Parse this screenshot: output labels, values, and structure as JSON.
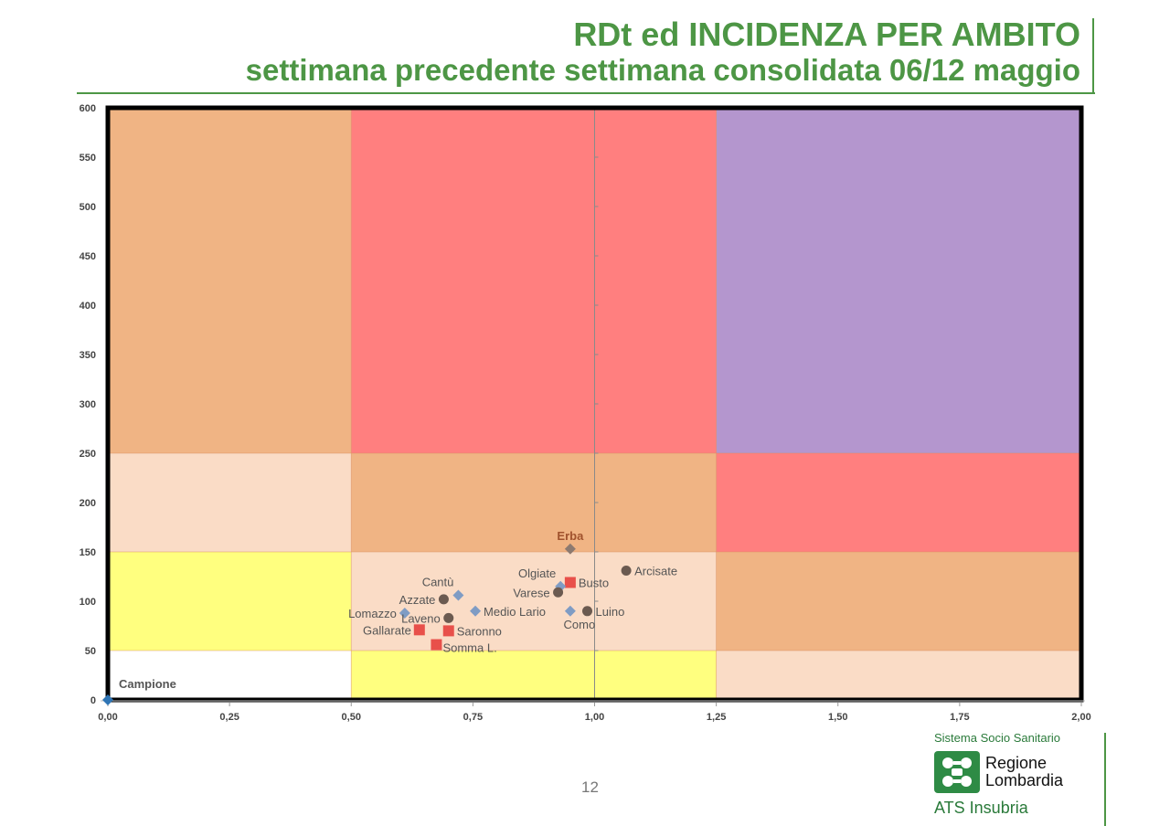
{
  "header": {
    "title_line1": "RDt ed INCIDENZA PER AMBITO",
    "title_line2": "settimana precedente settimana consolidata 06/12 maggio"
  },
  "chart_data": {
    "type": "scatter",
    "xlim": [
      0,
      2
    ],
    "ylim": [
      0,
      600
    ],
    "x_ticks": [
      "0,00",
      "0,25",
      "0,50",
      "0,75",
      "1,00",
      "1,25",
      "1,50",
      "1,75",
      "2,00"
    ],
    "y_ticks": [
      "0",
      "50",
      "100",
      "150",
      "200",
      "250",
      "300",
      "350",
      "400",
      "450",
      "500",
      "550",
      "600"
    ],
    "background_zones": [
      {
        "x": [
          0,
          0.5
        ],
        "y": [
          250,
          600
        ],
        "color": "#f0b484"
      },
      {
        "x": [
          0.5,
          1.25
        ],
        "y": [
          250,
          600
        ],
        "color": "#ff7f7f"
      },
      {
        "x": [
          1.25,
          2
        ],
        "y": [
          250,
          600
        ],
        "color": "#b496ce"
      },
      {
        "x": [
          0,
          0.5
        ],
        "y": [
          150,
          250
        ],
        "color": "#fadcc6"
      },
      {
        "x": [
          0.5,
          1.25
        ],
        "y": [
          150,
          250
        ],
        "color": "#f0b484"
      },
      {
        "x": [
          1.25,
          2
        ],
        "y": [
          150,
          250
        ],
        "color": "#ff7f7f"
      },
      {
        "x": [
          0,
          0.5
        ],
        "y": [
          50,
          150
        ],
        "color": "#ffff7f"
      },
      {
        "x": [
          0.5,
          1.25
        ],
        "y": [
          50,
          150
        ],
        "color": "#fadcc6"
      },
      {
        "x": [
          1.25,
          2
        ],
        "y": [
          50,
          150
        ],
        "color": "#f0b484"
      },
      {
        "x": [
          0,
          0.5
        ],
        "y": [
          0,
          50
        ],
        "color": "#ffffff"
      },
      {
        "x": [
          0.5,
          1.25
        ],
        "y": [
          0,
          50
        ],
        "color": "#ffff7f"
      },
      {
        "x": [
          1.25,
          2
        ],
        "y": [
          0,
          50
        ],
        "color": "#fadcc6"
      }
    ],
    "points": [
      {
        "label": "Campione",
        "x": 0.0,
        "y": 0,
        "marker": "diamond",
        "color": "#2f75b5",
        "label_pos": "upper-right",
        "label_bold": true
      },
      {
        "label": "Erba",
        "x": 0.95,
        "y": 153,
        "marker": "diamond",
        "color": "#8c7a70",
        "label_pos": "above",
        "label_color": "#a0522d",
        "label_bold": true
      },
      {
        "label": "Arcisate",
        "x": 1.065,
        "y": 131,
        "marker": "circle",
        "color": "#6b5a50",
        "label_pos": "right"
      },
      {
        "label": "Busto",
        "x": 0.95,
        "y": 119,
        "marker": "square",
        "color": "#e8504a",
        "label_pos": "right"
      },
      {
        "label": "Olgiate",
        "x": 0.93,
        "y": 115,
        "marker": "diamond",
        "color": "#7f9cc4",
        "label_pos": "left-above"
      },
      {
        "label": "Varese",
        "x": 0.925,
        "y": 109,
        "marker": "circle",
        "color": "#6b5a50",
        "label_pos": "left"
      },
      {
        "label": "Cantù",
        "x": 0.72,
        "y": 106,
        "marker": "diamond",
        "color": "#7f9cc4",
        "label_pos": "left-above"
      },
      {
        "label": "Azzate",
        "x": 0.69,
        "y": 102,
        "marker": "circle",
        "color": "#6b5a50",
        "label_pos": "left"
      },
      {
        "label": "Luino",
        "x": 0.985,
        "y": 90,
        "marker": "circle",
        "color": "#6b5a50",
        "label_pos": "right"
      },
      {
        "label": "Como",
        "x": 0.95,
        "y": 90,
        "marker": "diamond",
        "color": "#7f9cc4",
        "label_pos": "below"
      },
      {
        "label": "Medio Lario",
        "x": 0.755,
        "y": 90,
        "marker": "diamond",
        "color": "#7f9cc4",
        "label_pos": "right"
      },
      {
        "label": "Lomazzo",
        "x": 0.61,
        "y": 88,
        "marker": "diamond",
        "color": "#7f9cc4",
        "label_pos": "left"
      },
      {
        "label": "Laveno",
        "x": 0.7,
        "y": 83,
        "marker": "circle",
        "color": "#6b5a50",
        "label_pos": "left"
      },
      {
        "label": "Gallarate",
        "x": 0.64,
        "y": 71,
        "marker": "square",
        "color": "#e8504a",
        "label_pos": "left"
      },
      {
        "label": "Saronno",
        "x": 0.7,
        "y": 70,
        "marker": "square",
        "color": "#e8504a",
        "label_pos": "right"
      },
      {
        "label": "Somma L.",
        "x": 0.675,
        "y": 56,
        "marker": "square",
        "color": "#e8504a",
        "label_pos": "right-below"
      }
    ]
  },
  "footer": {
    "page_number": "12",
    "logo_system": "Sistema Socio Sanitario",
    "logo_region_line1": "Regione",
    "logo_region_line2": "Lombardia",
    "logo_ats": "ATS Insubria"
  },
  "colors": {
    "title_green": "#4d9645",
    "logo_green": "#2e8b45"
  }
}
